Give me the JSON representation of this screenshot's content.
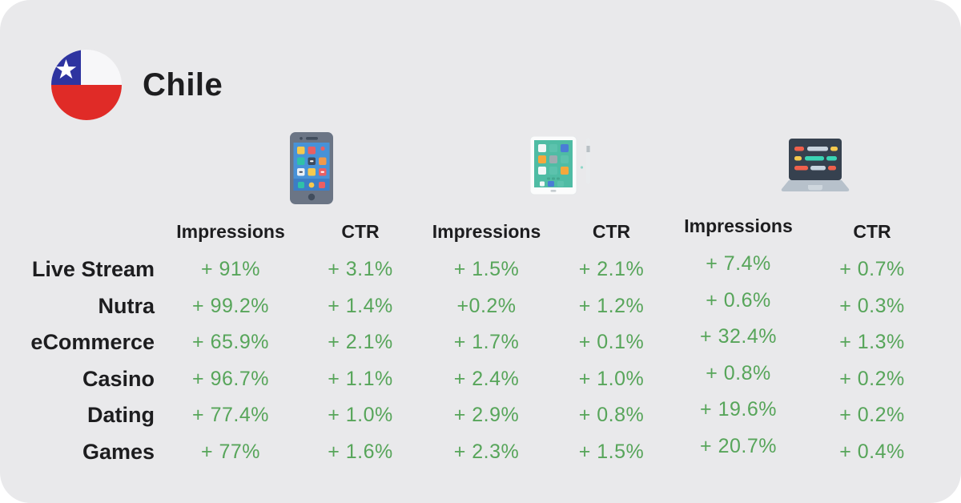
{
  "page": {
    "title": "Chile",
    "card_bg": "#e9e9eb",
    "text_color": "#1d1d1f",
    "value_color": "#57a55a"
  },
  "flag": {
    "name": "chile-flag",
    "blue": "#2e34a0",
    "white": "#f7f7f9",
    "red": "#e02b27"
  },
  "devices": [
    {
      "icon": "smartphone-icon"
    },
    {
      "icon": "tablet-icon"
    },
    {
      "icon": "laptop-icon"
    }
  ],
  "table": {
    "column_headers": [
      "Impressions",
      "CTR",
      "Impressions",
      "CTR",
      "Impressions",
      "CTR"
    ],
    "rows": [
      {
        "label": "Live Stream",
        "values": [
          "+ 91%",
          "+ 3.1%",
          "+ 1.5%",
          "+ 2.1%",
          "+ 7.4%",
          "+ 0.7%"
        ]
      },
      {
        "label": "Nutra",
        "values": [
          "+ 99.2%",
          "+ 1.4%",
          "+0.2%",
          "+ 1.2%",
          "+ 0.6%",
          "+ 0.3%"
        ]
      },
      {
        "label": "eCommerce",
        "values": [
          "+ 65.9%",
          "+ 2.1%",
          "+ 1.7%",
          "+ 0.1%",
          "+ 32.4%",
          "+ 1.3%"
        ]
      },
      {
        "label": "Casino",
        "values": [
          "+ 96.7%",
          "+ 1.1%",
          "+ 2.4%",
          "+ 1.0%",
          "+ 0.8%",
          "+ 0.2%"
        ]
      },
      {
        "label": "Dating",
        "values": [
          "+ 77.4%",
          "+ 1.0%",
          "+ 2.9%",
          "+ 0.8%",
          "+ 19.6%",
          "+ 0.2%"
        ]
      },
      {
        "label": "Games",
        "values": [
          "+ 77%",
          "+ 1.6%",
          "+ 2.3%",
          "+ 1.5%",
          "+ 20.7%",
          "+ 0.4%"
        ]
      }
    ]
  },
  "chart_data": {
    "type": "table",
    "title": "Chile",
    "value_prefix": "+",
    "unit": "%",
    "column_groups": [
      {
        "device": "smartphone",
        "metrics": [
          "Impressions",
          "CTR"
        ]
      },
      {
        "device": "tablet",
        "metrics": [
          "Impressions",
          "CTR"
        ]
      },
      {
        "device": "laptop",
        "metrics": [
          "Impressions",
          "CTR"
        ]
      }
    ],
    "rows": [
      {
        "vertical": "Live Stream",
        "smartphone": {
          "impressions_pct": 91,
          "ctr_pct": 3.1
        },
        "tablet": {
          "impressions_pct": 1.5,
          "ctr_pct": 2.1
        },
        "laptop": {
          "impressions_pct": 7.4,
          "ctr_pct": 0.7
        }
      },
      {
        "vertical": "Nutra",
        "smartphone": {
          "impressions_pct": 99.2,
          "ctr_pct": 1.4
        },
        "tablet": {
          "impressions_pct": 0.2,
          "ctr_pct": 1.2
        },
        "laptop": {
          "impressions_pct": 0.6,
          "ctr_pct": 0.3
        }
      },
      {
        "vertical": "eCommerce",
        "smartphone": {
          "impressions_pct": 65.9,
          "ctr_pct": 2.1
        },
        "tablet": {
          "impressions_pct": 1.7,
          "ctr_pct": 0.1
        },
        "laptop": {
          "impressions_pct": 32.4,
          "ctr_pct": 1.3
        }
      },
      {
        "vertical": "Casino",
        "smartphone": {
          "impressions_pct": 96.7,
          "ctr_pct": 1.1
        },
        "tablet": {
          "impressions_pct": 2.4,
          "ctr_pct": 1.0
        },
        "laptop": {
          "impressions_pct": 0.8,
          "ctr_pct": 0.2
        }
      },
      {
        "vertical": "Dating",
        "smartphone": {
          "impressions_pct": 77.4,
          "ctr_pct": 1.0
        },
        "tablet": {
          "impressions_pct": 2.9,
          "ctr_pct": 0.8
        },
        "laptop": {
          "impressions_pct": 19.6,
          "ctr_pct": 0.2
        }
      },
      {
        "vertical": "Games",
        "smartphone": {
          "impressions_pct": 77,
          "ctr_pct": 1.6
        },
        "tablet": {
          "impressions_pct": 2.3,
          "ctr_pct": 1.5
        },
        "laptop": {
          "impressions_pct": 20.7,
          "ctr_pct": 0.4
        }
      }
    ]
  }
}
